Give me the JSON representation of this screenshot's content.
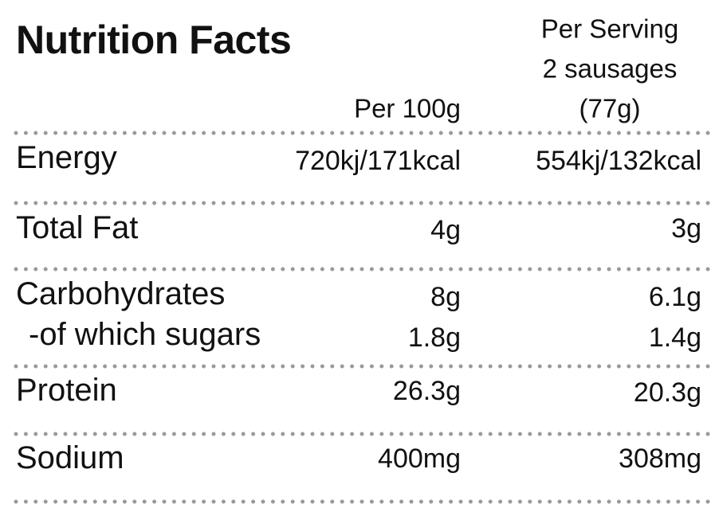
{
  "title": "Nutrition Facts",
  "header": {
    "per_100g": "Per 100g",
    "per_serving": [
      "Per Serving",
      "2 sausages",
      "(77g)"
    ]
  },
  "table": {
    "rows": [
      {
        "label": "Energy",
        "per_100g": "720kj/171kcal",
        "per_serving": "554kj/132kcal"
      },
      {
        "label": "Total Fat",
        "per_100g": "4g",
        "per_serving": "3g"
      },
      {
        "label": "Carbohydrates",
        "per_100g": "8g",
        "per_serving": "6.1g"
      },
      {
        "label": "-of which sugars",
        "per_100g": "1.8g",
        "per_serving": "1.4g"
      },
      {
        "label": "Protein",
        "per_100g": "26.3g",
        "per_serving": "20.3g"
      },
      {
        "label": "Sodium",
        "per_100g": "400mg",
        "per_serving": "308mg"
      }
    ]
  }
}
